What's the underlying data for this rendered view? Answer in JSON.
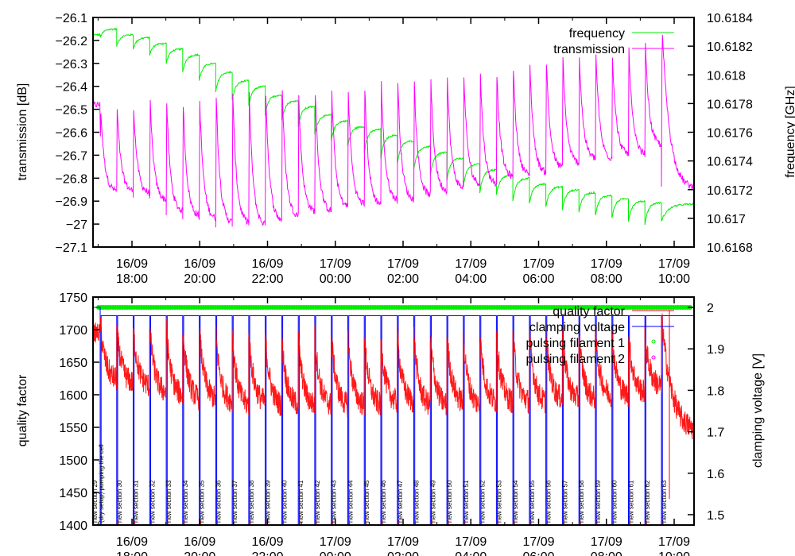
{
  "chart_data": [
    {
      "type": "line",
      "panel": "top",
      "title": "",
      "xlabel": "",
      "ylabel": "transmission [dB]",
      "y2label": "frequency [GHz]",
      "ylim": [
        -27.1,
        -26.1
      ],
      "y2lim": [
        10.6168,
        10.6184
      ],
      "x_range": [
        "16/09 16:50",
        "17/09 10:36"
      ],
      "x_ticks": [
        {
          "date": "16/09",
          "time": "18:00"
        },
        {
          "date": "16/09",
          "time": "20:00"
        },
        {
          "date": "16/09",
          "time": "22:00"
        },
        {
          "date": "17/09",
          "time": "00:00"
        },
        {
          "date": "17/09",
          "time": "02:00"
        },
        {
          "date": "17/09",
          "time": "04:00"
        },
        {
          "date": "17/09",
          "time": "06:00"
        },
        {
          "date": "17/09",
          "time": "08:00"
        },
        {
          "date": "17/09",
          "time": "10:00"
        }
      ],
      "y_ticks": [
        "-26.1",
        "-26.2",
        "-26.3",
        "-26.4",
        "-26.5",
        "-26.6",
        "-26.7",
        "-26.8",
        "-26.9",
        "-27",
        "-27.1"
      ],
      "y2_ticks": [
        "10.6184",
        "10.6182",
        "10.618",
        "10.6178",
        "10.6176",
        "10.6174",
        "10.6172",
        "10.617",
        "10.6168"
      ],
      "legend_position": "top-right",
      "series": [
        {
          "name": "frequency",
          "axis": "right",
          "color": "#00ee00",
          "description": "sawtooth drifting downward; upper envelope per cycle (GHz)",
          "cycle_peaks": [
            10.61832,
            10.61828,
            10.61826,
            10.61822,
            10.61818,
            10.61814,
            10.61808,
            10.61802,
            10.61796,
            10.61792,
            10.61786,
            10.61782,
            10.61778,
            10.61772,
            10.61768,
            10.61764,
            10.61762,
            10.61758,
            10.61754,
            10.6175,
            10.61746,
            10.61742,
            10.61738,
            10.61734,
            10.6173,
            10.61728,
            10.61724,
            10.61722,
            10.6172,
            10.61718,
            10.61716,
            10.61714,
            10.61712,
            10.61711,
            10.6171
          ],
          "cycle_dips": [
            10.61826,
            10.6182,
            10.61818,
            10.61814,
            10.61808,
            10.61802,
            10.61796,
            10.61788,
            10.61782,
            10.61778,
            10.61772,
            10.61768,
            10.61764,
            10.61758,
            10.61754,
            10.6175,
            10.61746,
            10.61742,
            10.61738,
            10.61734,
            10.6173,
            10.61726,
            10.61722,
            10.61718,
            10.61716,
            10.61712,
            10.6171,
            10.61708,
            10.61706,
            10.61704,
            10.61702,
            10.617,
            10.61698,
            10.61696,
            10.61698
          ]
        },
        {
          "name": "transmission",
          "axis": "left",
          "color": "#ff00ff",
          "description": "sharp spike at each section start then exponential decay (dB)",
          "cycle_peaks": [
            -26.47,
            -26.48,
            -26.48,
            -26.45,
            -26.45,
            -26.45,
            -26.44,
            -26.42,
            -26.4,
            -26.4,
            -26.4,
            -26.4,
            -26.42,
            -26.4,
            -26.4,
            -26.4,
            -26.38,
            -26.36,
            -26.36,
            -26.36,
            -26.35,
            -26.34,
            -26.33,
            -26.32,
            -26.32,
            -26.3,
            -26.28,
            -26.27,
            -26.25,
            -26.25,
            -26.24,
            -26.24,
            -26.22,
            -26.2,
            -26.14
          ],
          "cycle_troughs": [
            -26.86,
            -26.86,
            -26.87,
            -26.9,
            -26.95,
            -26.97,
            -26.98,
            -27.0,
            -27.0,
            -27.01,
            -26.99,
            -26.97,
            -26.95,
            -26.95,
            -26.93,
            -26.92,
            -26.92,
            -26.9,
            -26.9,
            -26.88,
            -26.86,
            -26.85,
            -26.83,
            -26.83,
            -26.8,
            -26.79,
            -26.78,
            -26.76,
            -26.74,
            -26.72,
            -26.72,
            -26.7,
            -26.7,
            -26.66,
            -26.85
          ]
        }
      ]
    },
    {
      "type": "line",
      "panel": "bottom",
      "title": "",
      "xlabel": "",
      "ylabel": "quality factor",
      "y2label": "clamping voltage [V]",
      "ylim": [
        1400,
        1750
      ],
      "y2lim": [
        1.475,
        2.025
      ],
      "x_range": [
        "16/09 16:50",
        "17/09 10:36"
      ],
      "x_ticks": [
        {
          "date": "16/09",
          "time": "18:00"
        },
        {
          "date": "16/09",
          "time": "20:00"
        },
        {
          "date": "16/09",
          "time": "22:00"
        },
        {
          "date": "17/09",
          "time": "00:00"
        },
        {
          "date": "17/09",
          "time": "02:00"
        },
        {
          "date": "17/09",
          "time": "04:00"
        },
        {
          "date": "17/09",
          "time": "06:00"
        },
        {
          "date": "17/09",
          "time": "08:00"
        },
        {
          "date": "17/09",
          "time": "10:00"
        }
      ],
      "y_ticks": [
        "1750",
        "1700",
        "1650",
        "1600",
        "1550",
        "1500",
        "1450",
        "1400"
      ],
      "y2_ticks": [
        "2",
        "1.9",
        "1.8",
        "1.7",
        "1.6",
        "1.5"
      ],
      "legend_position": "top-right",
      "series": [
        {
          "name": "quality factor",
          "axis": "left",
          "color": "#ff0000",
          "description": "noisy decay after each section start",
          "cycle_peaks": [
            1710,
            1700,
            1700,
            1700,
            1700,
            1700,
            1700,
            1695,
            1690,
            1690,
            1690,
            1685,
            1685,
            1690,
            1690,
            1690,
            1690,
            1685,
            1690,
            1690,
            1690,
            1690,
            1690,
            1690,
            1690,
            1690,
            1690,
            1690,
            1690,
            1690,
            1690,
            1690,
            1690,
            1690,
            1720
          ],
          "cycle_troughs": [
            1620,
            1615,
            1610,
            1600,
            1595,
            1590,
            1590,
            1585,
            1580,
            1585,
            1580,
            1580,
            1580,
            1580,
            1580,
            1580,
            1580,
            1585,
            1585,
            1580,
            1580,
            1585,
            1580,
            1585,
            1585,
            1585,
            1585,
            1590,
            1590,
            1590,
            1595,
            1595,
            1600,
            1610,
            1540
          ]
        },
        {
          "name": "clamping voltage",
          "axis": "right",
          "color": "#0000ff",
          "description": "held at ~1.98 V, drops to ~1.47 V briefly at each new section",
          "high_level": 1.98,
          "initial_level": 2.0,
          "low_level": 1.47
        },
        {
          "name": "pulsing filament 1",
          "axis": "right",
          "color": "#00ee00",
          "marker": "circle",
          "description": "continuous markers at ~2.0 V across the run",
          "level": 2.0
        },
        {
          "name": "pulsing filament 2",
          "axis": "right",
          "color": "#ff00ff",
          "marker": "circle",
          "description": "not visibly plotted in range"
        }
      ],
      "annotations": [
        "new section 29",
        "(dry setup) pumping the cell",
        "new section 30",
        "new section 31",
        "new section 32",
        "new section 33",
        "new section 34",
        "new section 35",
        "new section 36",
        "new section 37",
        "new section 38",
        "new section 39",
        "new section 40",
        "new section 41",
        "new section 42",
        "new section 43",
        "new section 44",
        "new section 45",
        "new section 46",
        "new section 47",
        "new section 48",
        "new section 49",
        "new section 50",
        "new section 51",
        "new section 52",
        "new section 53",
        "new section 54",
        "new section 55",
        "new section 56",
        "new section 57",
        "new section 58",
        "new section 59",
        "new section 60",
        "new section 61",
        "new section 62",
        "new section 63"
      ]
    }
  ],
  "legend": {
    "top": [
      "frequency",
      "transmission"
    ],
    "bottom": [
      "quality factor",
      "clamping voltage",
      "pulsing filament 1",
      "pulsing filament 2"
    ]
  },
  "colors": {
    "frequency": "#00ee00",
    "transmission": "#ff00ff",
    "quality_factor": "#ff0000",
    "clamping_voltage": "#0000ff",
    "filament1": "#00ee00",
    "filament2": "#ff00ff"
  }
}
